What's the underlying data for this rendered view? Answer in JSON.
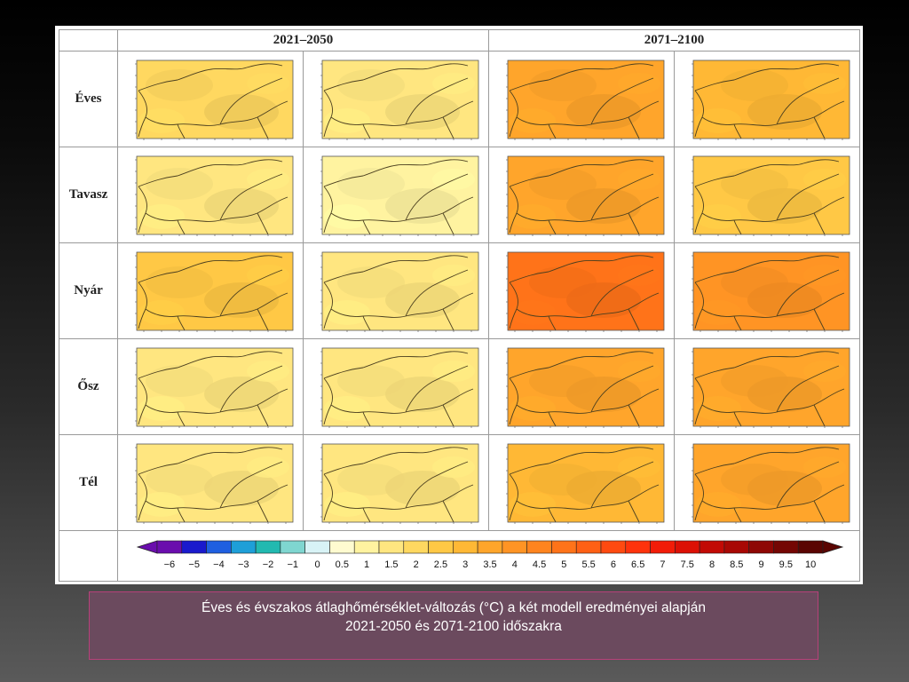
{
  "table": {
    "periods": [
      "2021–2050",
      "2071–2100"
    ],
    "rows": [
      {
        "label": "Éves",
        "maps": [
          {
            "scale": 1.8
          },
          {
            "scale": 1.3
          },
          {
            "scale": 3.6
          },
          {
            "scale": 3.0
          }
        ]
      },
      {
        "label": "Tavasz",
        "maps": [
          {
            "scale": 1.3
          },
          {
            "scale": 0.9
          },
          {
            "scale": 3.3
          },
          {
            "scale": 2.3
          }
        ]
      },
      {
        "label": "Nyár",
        "maps": [
          {
            "scale": 2.6
          },
          {
            "scale": 1.6
          },
          {
            "scale": 5.2
          },
          {
            "scale": 4.2
          }
        ]
      },
      {
        "label": "Ősz",
        "maps": [
          {
            "scale": 1.7
          },
          {
            "scale": 1.4
          },
          {
            "scale": 3.6
          },
          {
            "scale": 3.6
          }
        ]
      },
      {
        "label": "Tél",
        "maps": [
          {
            "scale": 1.4
          },
          {
            "scale": 1.3
          },
          {
            "scale": 3.0
          },
          {
            "scale": 3.4
          }
        ]
      }
    ]
  },
  "colorbar": {
    "labels": [
      "−6",
      "−5",
      "−4",
      "−3",
      "−2",
      "−1",
      "0",
      "0.5",
      "1",
      "1.5",
      "2",
      "2.5",
      "3",
      "3.5",
      "4",
      "4.5",
      "5",
      "5.5",
      "6",
      "6.5",
      "7",
      "7.5",
      "8",
      "8.5",
      "9",
      "9.5",
      "10"
    ],
    "colors": [
      "#6a0dad",
      "#1a1acd",
      "#1f5fe0",
      "#1e9fd8",
      "#22b9b0",
      "#7fd6d0",
      "#d8f3f6",
      "#fffbd0",
      "#fff3a0",
      "#ffe680",
      "#ffd860",
      "#ffc845",
      "#ffb835",
      "#ffa52b",
      "#ff9424",
      "#ff841e",
      "#ff7319",
      "#ff6014",
      "#ff4a10",
      "#ff330c",
      "#f21c08",
      "#dc1005",
      "#c20a05",
      "#a80804",
      "#8e0704",
      "#740603",
      "#5a0502"
    ]
  },
  "caption": {
    "line1": "Éves és évszakos átlaghőmérséklet-változás (°C) a két modell eredményei alapján",
    "line2": "2021-2050 és 2071-2100 időszakra"
  }
}
